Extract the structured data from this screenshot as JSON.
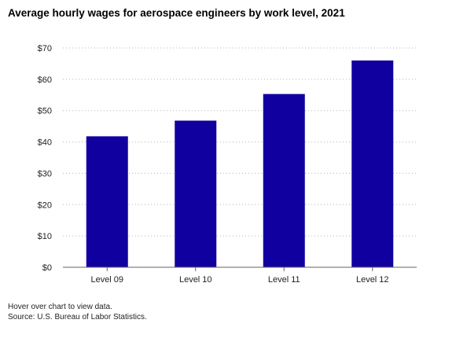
{
  "title": "Average hourly wages for aerospace engineers by work level, 2021",
  "footnotes": {
    "hover": "Hover over chart to view data.",
    "source": "Source: U.S. Bureau of Labor Statistics."
  },
  "colors": {
    "bar": "#1100a0",
    "grid": "#b5b5b5",
    "axis": "#666666"
  },
  "chart_data": {
    "type": "bar",
    "categories": [
      "Level 09",
      "Level 10",
      "Level 11",
      "Level 12"
    ],
    "values": [
      41.8,
      46.8,
      55.3,
      66.0
    ],
    "title": "Average hourly wages for aerospace engineers by work level, 2021",
    "xlabel": "",
    "ylabel": "",
    "ylim": [
      0,
      70
    ],
    "yticks": [
      0,
      10,
      20,
      30,
      40,
      50,
      60,
      70
    ],
    "ytick_labels": [
      "$0",
      "$10",
      "$20",
      "$30",
      "$40",
      "$50",
      "$60",
      "$70"
    ],
    "grid": true,
    "legend": "none"
  }
}
